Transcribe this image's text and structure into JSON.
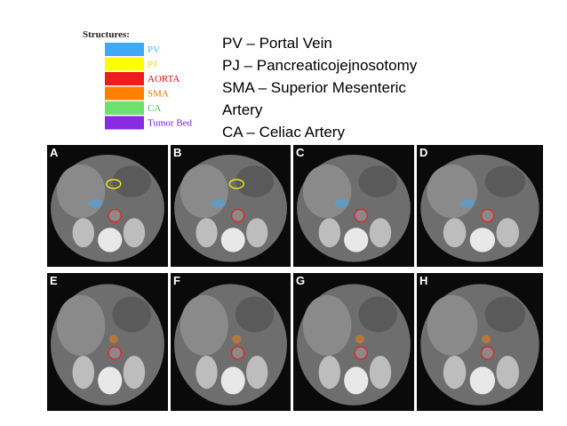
{
  "legend": {
    "title": "Structures:",
    "items": [
      {
        "label": "PV",
        "color": "#3fa9f5",
        "text_color": "#3fbfef"
      },
      {
        "label": "PJ",
        "color": "#ffff00",
        "text_color": "#e8e000"
      },
      {
        "label": "AORTA",
        "color": "#ee1c1c",
        "text_color": "#e01010"
      },
      {
        "label": "SMA",
        "color": "#ff8000",
        "text_color": "#f07800"
      },
      {
        "label": "CA",
        "color": "#6ee06e",
        "text_color": "#44cc44"
      },
      {
        "label": "Tumor Bed",
        "color": "#8a2be2",
        "text_color": "#7a1fd0"
      }
    ]
  },
  "definitions": [
    "PV – Portal Vein",
    "PJ – Pancreaticojejnosotomy",
    "SMA – Superior Mesenteric",
    "Artery",
    "CA – Celiac Artery"
  ],
  "panels": [
    "A",
    "B",
    "C",
    "D",
    "E",
    "F",
    "G",
    "H"
  ]
}
